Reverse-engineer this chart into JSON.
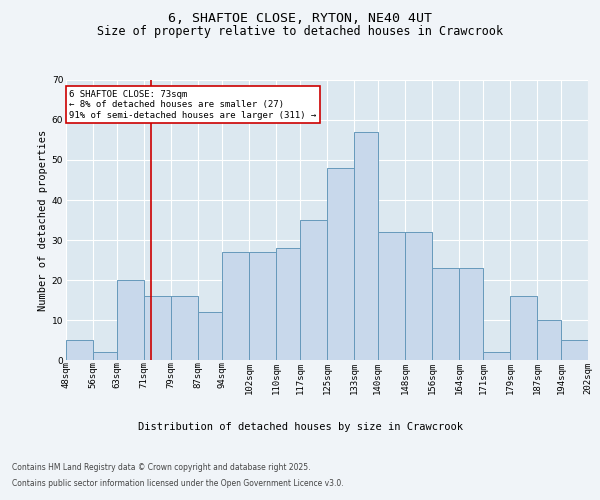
{
  "title": "6, SHAFTOE CLOSE, RYTON, NE40 4UT",
  "subtitle": "Size of property relative to detached houses in Crawcrook",
  "xlabel": "Distribution of detached houses by size in Crawcrook",
  "ylabel": "Number of detached properties",
  "bin_edges": [
    48,
    56,
    63,
    71,
    79,
    87,
    94,
    102,
    110,
    117,
    125,
    133,
    140,
    148,
    156,
    164,
    171,
    179,
    187,
    194,
    202
  ],
  "counts": [
    5,
    2,
    20,
    16,
    16,
    12,
    27,
    27,
    28,
    35,
    48,
    57,
    32,
    32,
    23,
    23,
    2,
    16,
    10,
    5
  ],
  "bar_color": "#c8d8eb",
  "bar_edge_color": "#6699bb",
  "vline_x": 73,
  "vline_color": "#cc0000",
  "annotation_text": "6 SHAFTOE CLOSE: 73sqm\n← 8% of detached houses are smaller (27)\n91% of semi-detached houses are larger (311) →",
  "annotation_box_facecolor": "#ffffff",
  "annotation_box_edgecolor": "#cc0000",
  "ylim": [
    0,
    70
  ],
  "yticks": [
    0,
    10,
    20,
    30,
    40,
    50,
    60,
    70
  ],
  "plot_bg_color": "#dce8f0",
  "fig_bg_color": "#f0f4f8",
  "footer_line1": "Contains HM Land Registry data © Crown copyright and database right 2025.",
  "footer_line2": "Contains public sector information licensed under the Open Government Licence v3.0.",
  "title_fontsize": 9.5,
  "subtitle_fontsize": 8.5,
  "tick_fontsize": 6.5,
  "ylabel_fontsize": 7.5,
  "xlabel_fontsize": 7.5,
  "footer_fontsize": 5.5,
  "annotation_fontsize": 6.5
}
